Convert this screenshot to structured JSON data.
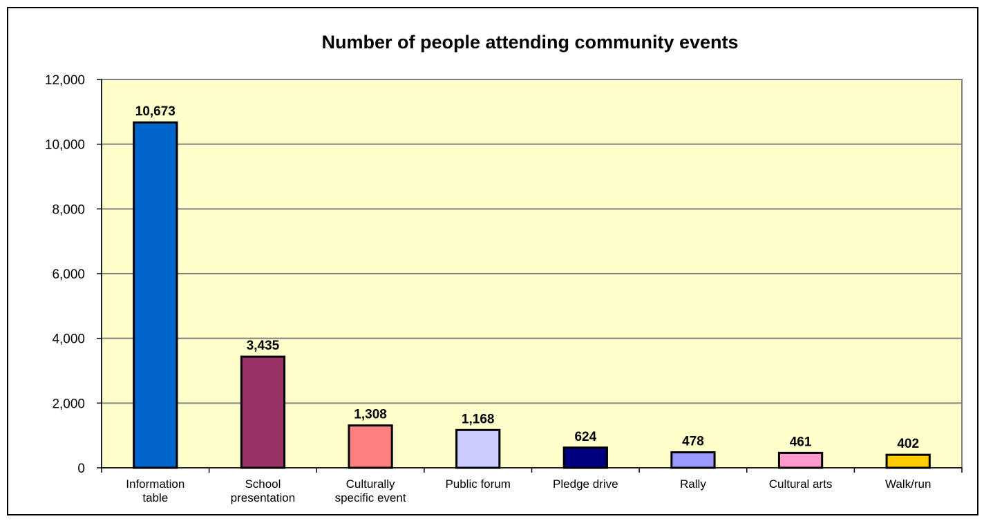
{
  "chart_data": {
    "type": "bar",
    "title": "Number of people attending community events",
    "xlabel": "",
    "ylabel": "",
    "ylim": [
      0,
      12000
    ],
    "yticks": [
      "0",
      "2,000",
      "4,000",
      "6,000",
      "8,000",
      "10,000",
      "12,000"
    ],
    "grid": true,
    "legend": "none",
    "plot_background": "#FFFFCC",
    "categories": [
      [
        "Information",
        "table"
      ],
      [
        "School",
        "presentation"
      ],
      [
        "Culturally",
        "specific event"
      ],
      [
        "Public forum"
      ],
      [
        "Pledge drive"
      ],
      [
        "Rally"
      ],
      [
        "Cultural arts"
      ],
      [
        "Walk/run"
      ]
    ],
    "values": [
      10673,
      3435,
      1308,
      1168,
      624,
      478,
      461,
      402
    ],
    "data_labels": [
      "10,673",
      "3,435",
      "1,308",
      "1,168",
      "624",
      "478",
      "461",
      "402"
    ],
    "colors": [
      "#0066CC",
      "#993366",
      "#FF8080",
      "#CCCCFF",
      "#000080",
      "#9999FF",
      "#FF99CC",
      "#FFCC00"
    ]
  }
}
